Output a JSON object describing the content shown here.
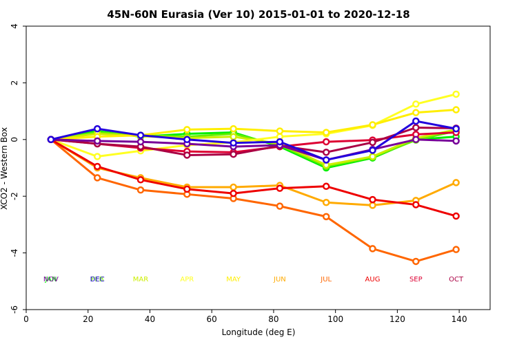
{
  "chart_data": {
    "type": "line",
    "title": "45N-60N Eurasia (Ver 10)   2015-01-01 to 2020-12-18",
    "xlabel": "Longitude (deg E)",
    "ylabel": "XCO2 - Western Box",
    "xlim": [
      0,
      150
    ],
    "ylim": [
      -6,
      4
    ],
    "xticks": [
      0,
      20,
      40,
      60,
      80,
      100,
      120,
      140
    ],
    "yticks": [
      -6,
      -4,
      -2,
      0,
      2,
      4
    ],
    "grid": false,
    "x": [
      8,
      23,
      37,
      52,
      67,
      82,
      97,
      112,
      126,
      139
    ],
    "series": [
      {
        "name": "JAN",
        "color": "#00ee00",
        "values": [
          0,
          0.3,
          0.1,
          0.2,
          0.25,
          -0.25,
          -1.0,
          -0.65,
          0.0,
          0.1
        ]
      },
      {
        "name": "FEB",
        "color": "#66ee00",
        "values": [
          0,
          0.25,
          0.15,
          0.1,
          0.2,
          -0.2,
          -0.95,
          -0.62,
          -0.02,
          0.3
        ]
      },
      {
        "name": "MAR",
        "color": "#ccee00",
        "values": [
          0,
          0.2,
          0.12,
          0.05,
          0.1,
          -0.15,
          -0.9,
          -0.6,
          0.05,
          0.35
        ]
      },
      {
        "name": "APR",
        "color": "#ffff22",
        "values": [
          0,
          -0.6,
          -0.4,
          -0.2,
          -0.1,
          0.1,
          0.2,
          0.5,
          1.25,
          1.6
        ]
      },
      {
        "name": "MAY",
        "color": "#ffee00",
        "values": [
          0,
          0.1,
          0.15,
          0.35,
          0.38,
          0.3,
          0.25,
          0.52,
          0.95,
          1.05
        ]
      },
      {
        "name": "JUN",
        "color": "#ffaa00",
        "values": [
          0,
          -1.0,
          -1.35,
          -1.68,
          -1.68,
          -1.62,
          -2.22,
          -2.32,
          -2.15,
          -1.52
        ]
      },
      {
        "name": "JUL",
        "color": "#ff6600",
        "values": [
          0,
          -1.35,
          -1.78,
          -1.93,
          -2.08,
          -2.35,
          -2.72,
          -3.85,
          -4.3,
          -3.88
        ]
      },
      {
        "name": "AUG",
        "color": "#ee0000",
        "values": [
          0,
          -0.95,
          -1.42,
          -1.75,
          -1.9,
          -1.72,
          -1.65,
          -2.12,
          -2.3,
          -2.7
        ]
      },
      {
        "name": "SEP",
        "color": "#dd0033",
        "values": [
          0,
          -0.15,
          -0.3,
          -0.42,
          -0.45,
          -0.25,
          -0.08,
          -0.02,
          0.18,
          0.25
        ]
      },
      {
        "name": "OCT",
        "color": "#aa0044",
        "values": [
          0,
          -0.15,
          -0.25,
          -0.55,
          -0.52,
          -0.22,
          -0.45,
          -0.1,
          0.42,
          0.4
        ]
      },
      {
        "name": "NOV",
        "color": "#770099",
        "values": [
          0,
          -0.05,
          -0.08,
          -0.15,
          -0.25,
          -0.2,
          -0.72,
          -0.35,
          0.0,
          -0.05
        ]
      },
      {
        "name": "DEC",
        "color": "#2200dd",
        "values": [
          0,
          0.38,
          0.15,
          0.0,
          -0.12,
          -0.08,
          -0.72,
          -0.38,
          0.65,
          0.38
        ]
      }
    ]
  }
}
